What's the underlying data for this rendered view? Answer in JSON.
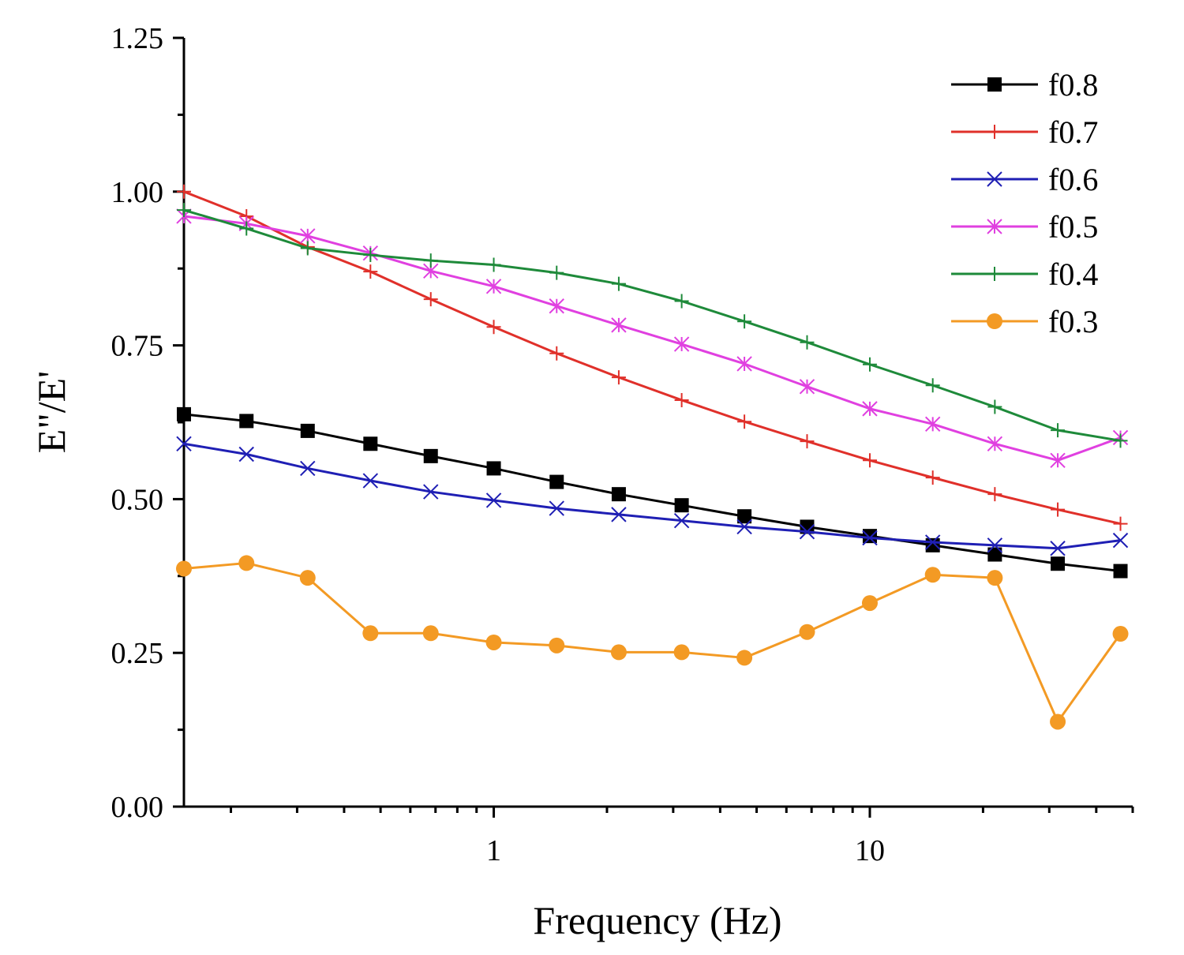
{
  "chart_data": {
    "type": "line",
    "xlabel": "Frequency (Hz)",
    "ylabel": "E\"/E'",
    "xscale": "log",
    "xlim": [
      0.15,
      50
    ],
    "ylim": [
      0,
      1.25
    ],
    "x_ticks": [
      1,
      10
    ],
    "x_tick_labels": [
      "1",
      "10"
    ],
    "y_ticks": [
      0,
      0.25,
      0.5,
      0.75,
      1.0,
      1.25
    ],
    "y_tick_labels": [
      "0.00",
      "0.25",
      "0.50",
      "0.75",
      "1.00",
      "1.25"
    ],
    "grid": false,
    "legend_position": "top-right",
    "x": [
      0.15,
      0.22,
      0.32,
      0.47,
      0.68,
      1.0,
      1.47,
      2.15,
      3.16,
      4.64,
      6.81,
      10.0,
      14.7,
      21.5,
      31.6,
      46.4
    ],
    "series": [
      {
        "name": "f0.8",
        "color": "#000000",
        "marker": "square",
        "values": [
          0.638,
          0.627,
          0.611,
          0.59,
          0.57,
          0.55,
          0.528,
          0.508,
          0.49,
          0.472,
          0.455,
          0.44,
          0.425,
          0.41,
          0.395,
          0.383
        ]
      },
      {
        "name": "f0.7",
        "color": "#e0302a",
        "marker": "plus",
        "values": [
          1.0,
          0.96,
          0.91,
          0.87,
          0.825,
          0.78,
          0.737,
          0.698,
          0.661,
          0.626,
          0.594,
          0.563,
          0.535,
          0.508,
          0.483,
          0.46
        ]
      },
      {
        "name": "f0.6",
        "color": "#1f1fb4",
        "marker": "x",
        "values": [
          0.59,
          0.573,
          0.55,
          0.53,
          0.512,
          0.498,
          0.485,
          0.475,
          0.465,
          0.455,
          0.447,
          0.437,
          0.43,
          0.425,
          0.42,
          0.433
        ]
      },
      {
        "name": "f0.5",
        "color": "#e040e0",
        "marker": "asterisk",
        "values": [
          0.96,
          0.948,
          0.928,
          0.9,
          0.871,
          0.846,
          0.814,
          0.783,
          0.752,
          0.72,
          0.683,
          0.647,
          0.622,
          0.59,
          0.563,
          0.6
        ]
      },
      {
        "name": "f0.4",
        "color": "#1e8a3a",
        "marker": "plus",
        "values": [
          0.97,
          0.94,
          0.908,
          0.897,
          0.888,
          0.881,
          0.868,
          0.85,
          0.822,
          0.789,
          0.755,
          0.719,
          0.685,
          0.65,
          0.612,
          0.595
        ]
      },
      {
        "name": "f0.3",
        "color": "#f39a24",
        "marker": "circle",
        "values": [
          0.387,
          0.396,
          0.372,
          0.282,
          0.282,
          0.267,
          0.262,
          0.251,
          0.251,
          0.242,
          0.284,
          0.331,
          0.377,
          0.372,
          0.138,
          0.281
        ]
      }
    ]
  }
}
